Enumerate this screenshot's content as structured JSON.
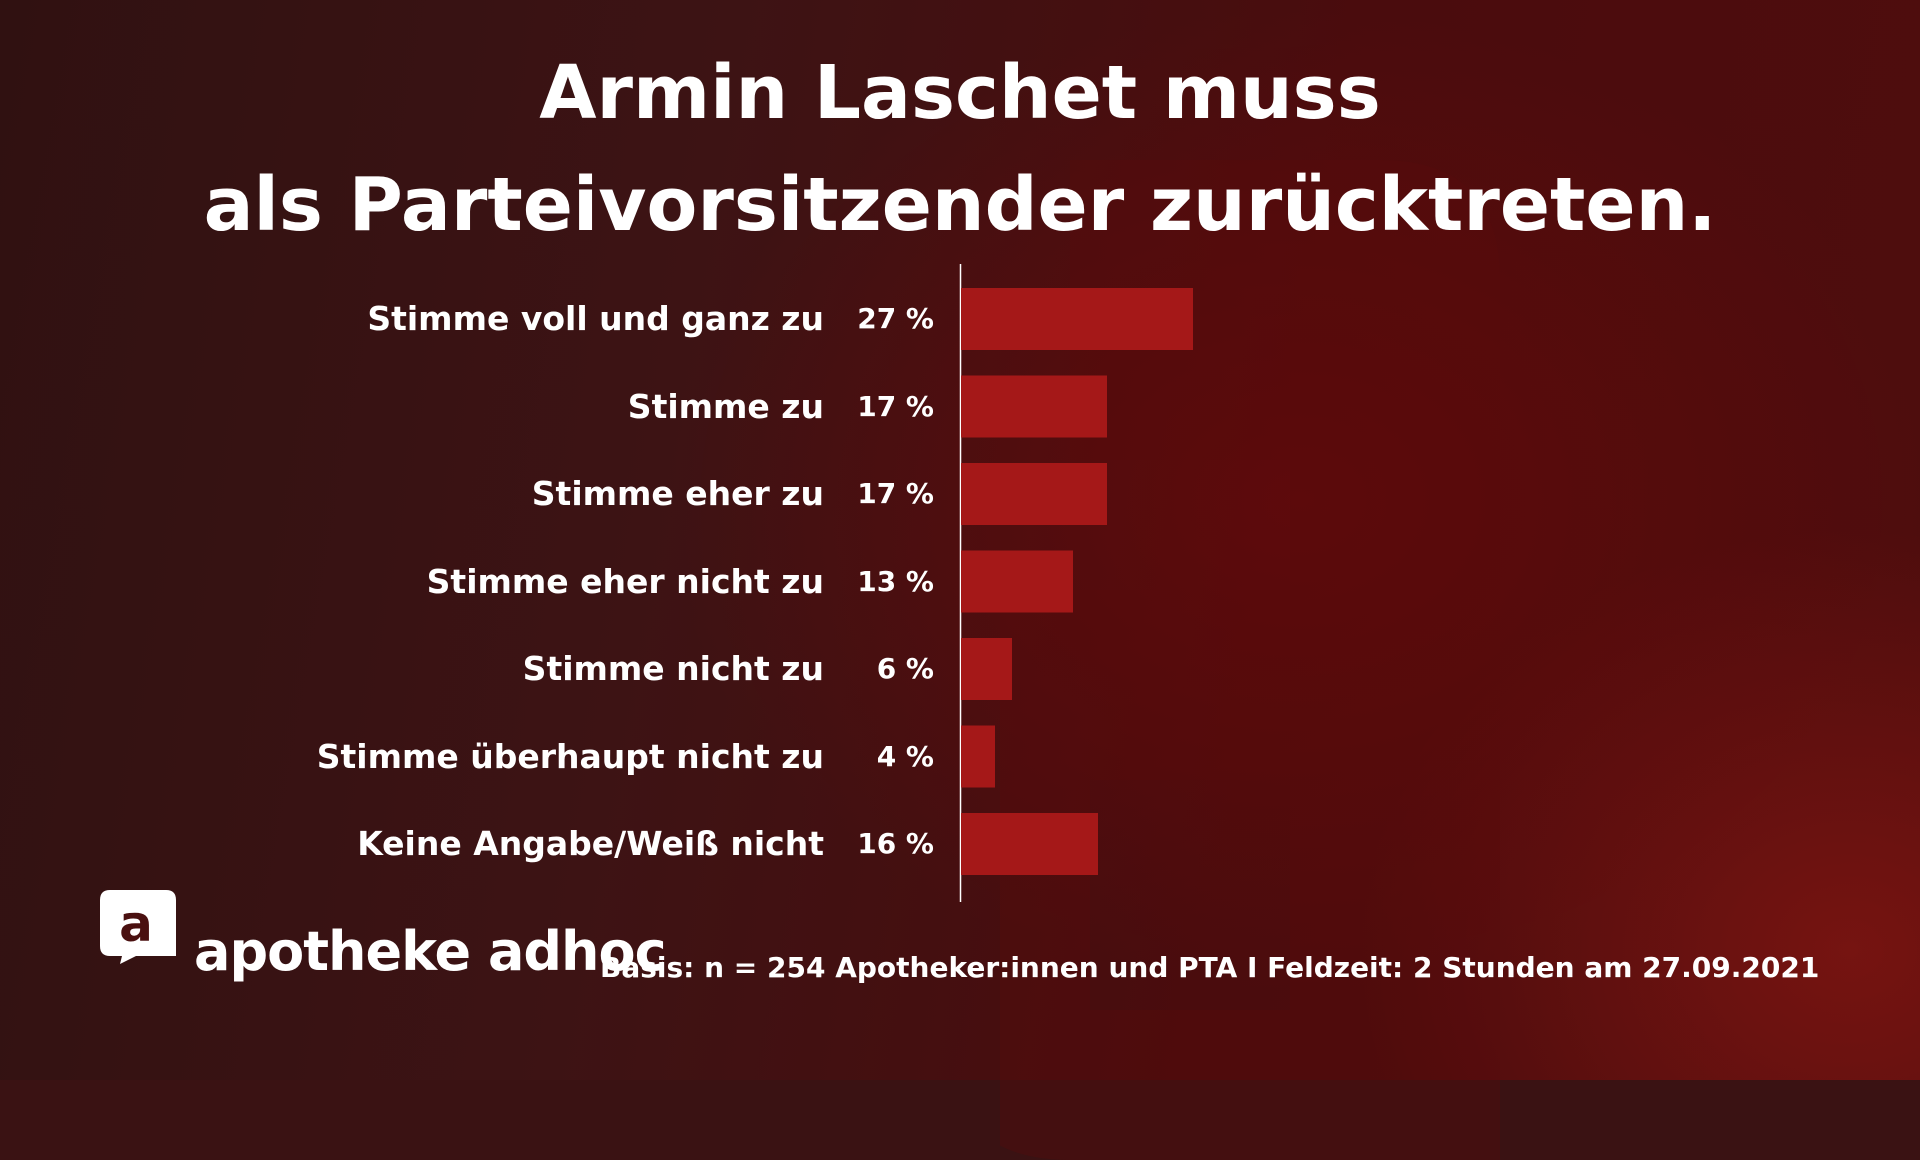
{
  "title": {
    "line1": "Armin Laschet muss",
    "line2": "als Parteivorsitzender zurücktreten."
  },
  "colors": {
    "bar": "#a51818",
    "text": "#ffffff",
    "axis": "#ffffff"
  },
  "chart_data": {
    "type": "bar",
    "orientation": "horizontal",
    "title": "Armin Laschet muss als Parteivorsitzender zurücktreten.",
    "categories": [
      "Stimme voll und ganz zu",
      "Stimme zu",
      "Stimme eher zu",
      "Stimme eher nicht zu",
      "Stimme nicht zu",
      "Stimme überhaupt nicht zu",
      "Keine Angabe/Weiß nicht"
    ],
    "values": [
      27,
      17,
      17,
      13,
      6,
      4,
      16
    ],
    "value_labels": [
      "27 %",
      "17 %",
      "17 %",
      "13 %",
      "6 %",
      "4 %",
      "16 %"
    ],
    "unit": "%",
    "xlim": [
      0,
      100
    ],
    "grid": false,
    "legend": "none"
  },
  "logo": {
    "mark_letter": "a",
    "text": "apotheke adhoc",
    "icon": "apotheke-adhoc-logo-icon"
  },
  "footnote": "Basis: n = 254 Apotheker:innen und PTA I Feldzeit: 2 Stunden am 27.09.2021"
}
